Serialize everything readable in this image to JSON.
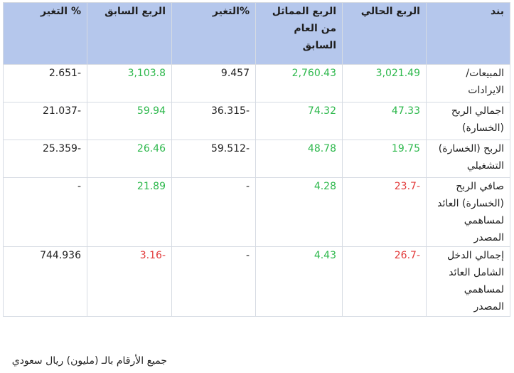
{
  "table": {
    "headers": [
      "التغير %",
      "الربع السابق",
      "التغير%",
      "الربع المماثل من العام السابق",
      "الربع الحالي",
      "بند"
    ],
    "rows": [
      {
        "label": "المبيعات/ الايرادات",
        "current": "3,021.49",
        "same_q_last_year": "2,760.43",
        "change_yoy": "9.457",
        "previous": "3,103.8",
        "change_qoq": "2.651-"
      },
      {
        "label": "اجمالي الربح (الخسارة)",
        "current": "47.33",
        "same_q_last_year": "74.32",
        "change_yoy": "36.315-",
        "previous": "59.94",
        "change_qoq": "21.037-"
      },
      {
        "label": "الربح (الخسارة) التشغيلي",
        "current": "19.75",
        "same_q_last_year": "48.78",
        "change_yoy": "59.512-",
        "previous": "26.46",
        "change_qoq": "25.359-"
      },
      {
        "label": "صافي الربح (الخسارة) العائد لمساهمي المصدر",
        "current": "23.7-",
        "same_q_last_year": "4.28",
        "change_yoy": "-",
        "previous": "21.89",
        "change_qoq": "-"
      },
      {
        "label": "إجمالي الدخل الشامل العائد لمساهمي المصدر",
        "current": "26.7-",
        "same_q_last_year": "4.43",
        "change_yoy": "-",
        "previous": "3.16-",
        "change_qoq": "744.936"
      }
    ]
  },
  "footnote": "جميع الأرقام بالـ (مليون) ريال سعودي",
  "colors": {
    "header_bg": "#b5c7ec",
    "positive": "#2db84c",
    "negative": "#e23a3a",
    "border": "#d6dbe3"
  }
}
